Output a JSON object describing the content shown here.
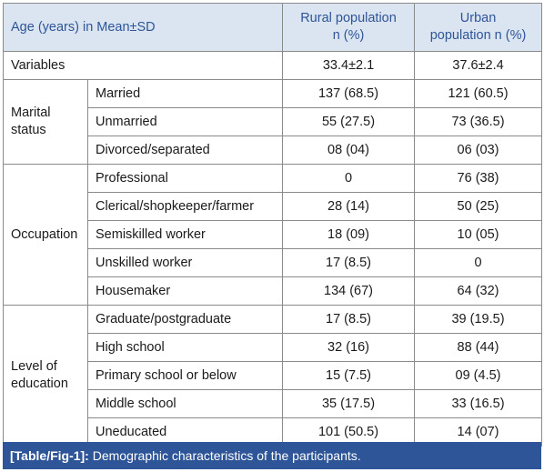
{
  "header": {
    "col1": "Age (years) in Mean±SD",
    "col2_line1": "Rural population",
    "col2_line2": "n (%)",
    "col3_line1": "Urban",
    "col3_line2": "population n (%)"
  },
  "variables_row": {
    "label": "Variables",
    "rural": "33.4±2.1",
    "urban": "37.6±2.4"
  },
  "groups": {
    "marital": {
      "label_line1": "Marital",
      "label_line2": "status",
      "rows": [
        {
          "label": "Married",
          "rural": "137 (68.5)",
          "urban": "121 (60.5)"
        },
        {
          "label": "Unmarried",
          "rural": "55 (27.5)",
          "urban": "73 (36.5)"
        },
        {
          "label": "Divorced/separated",
          "rural": "08 (04)",
          "urban": "06 (03)"
        }
      ]
    },
    "occupation": {
      "label": "Occupation",
      "rows": [
        {
          "label": "Professional",
          "rural": "0",
          "urban": "76 (38)"
        },
        {
          "label": "Clerical/shopkeeper/farmer",
          "rural": "28 (14)",
          "urban": "50 (25)"
        },
        {
          "label": "Semiskilled worker",
          "rural": "18 (09)",
          "urban": "10 (05)"
        },
        {
          "label": "Unskilled worker",
          "rural": "17 (8.5)",
          "urban": "0"
        },
        {
          "label": "Housemaker",
          "rural": "134 (67)",
          "urban": "64 (32)"
        }
      ]
    },
    "education": {
      "label_line1": "Level of",
      "label_line2": "education",
      "rows": [
        {
          "label": "Graduate/postgraduate",
          "rural": "17 (8.5)",
          "urban": "39 (19.5)"
        },
        {
          "label": "High school",
          "rural": "32 (16)",
          "urban": "88 (44)"
        },
        {
          "label": "Primary school or below",
          "rural": "15 (7.5)",
          "urban": "09 (4.5)"
        },
        {
          "label": "Middle school",
          "rural": "35 (17.5)",
          "urban": "33 (16.5)"
        },
        {
          "label": "Uneducated",
          "rural": "101 (50.5)",
          "urban": "14 (07)"
        }
      ]
    }
  },
  "caption": {
    "ref": "[Table/Fig-1]:",
    "text": "Demographic characteristics of the participants."
  }
}
